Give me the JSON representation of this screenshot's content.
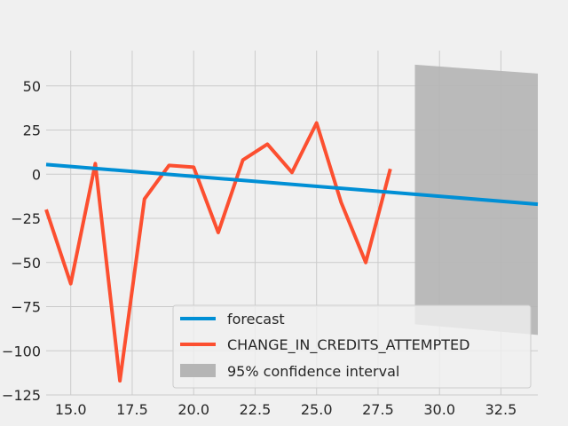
{
  "chart_data": {
    "type": "line",
    "title": "",
    "xlabel": "",
    "ylabel": "",
    "xlim": [
      14.0,
      34.0
    ],
    "ylim": [
      -125,
      70
    ],
    "xticks": [
      15.0,
      17.5,
      20.0,
      22.5,
      25.0,
      27.5,
      30.0,
      32.5
    ],
    "xtick_labels": [
      "15.0",
      "17.5",
      "20.0",
      "22.5",
      "25.0",
      "27.5",
      "30.0",
      "32.5"
    ],
    "yticks": [
      50,
      25,
      0,
      -25,
      -50,
      -75,
      -100,
      -125
    ],
    "ytick_labels": [
      "50",
      "25",
      "0",
      "−25",
      "−50",
      "−75",
      "−100",
      "−125"
    ],
    "grid": true,
    "legend_position": "lower-right",
    "series": [
      {
        "name": "forecast",
        "color": "#008fd5",
        "x": [
          14,
          34
        ],
        "y": [
          5.5,
          -17.0
        ]
      },
      {
        "name": "CHANGE_IN_CREDITS_ATTEMPTED",
        "color": "#fc4f30",
        "x": [
          14,
          15,
          16,
          17,
          18,
          19,
          20,
          21,
          22,
          23,
          24,
          25,
          26,
          27,
          28
        ],
        "y": [
          -20,
          -62,
          6,
          -117,
          -14,
          5,
          4,
          -33,
          8,
          17,
          1,
          29,
          -16,
          -50,
          3
        ]
      }
    ],
    "confidence_interval": {
      "name": "95% confidence interval",
      "color": "#b5b5b5",
      "x": [
        29,
        34
      ],
      "upper": [
        62,
        57
      ],
      "lower": [
        -85,
        -91
      ]
    }
  }
}
